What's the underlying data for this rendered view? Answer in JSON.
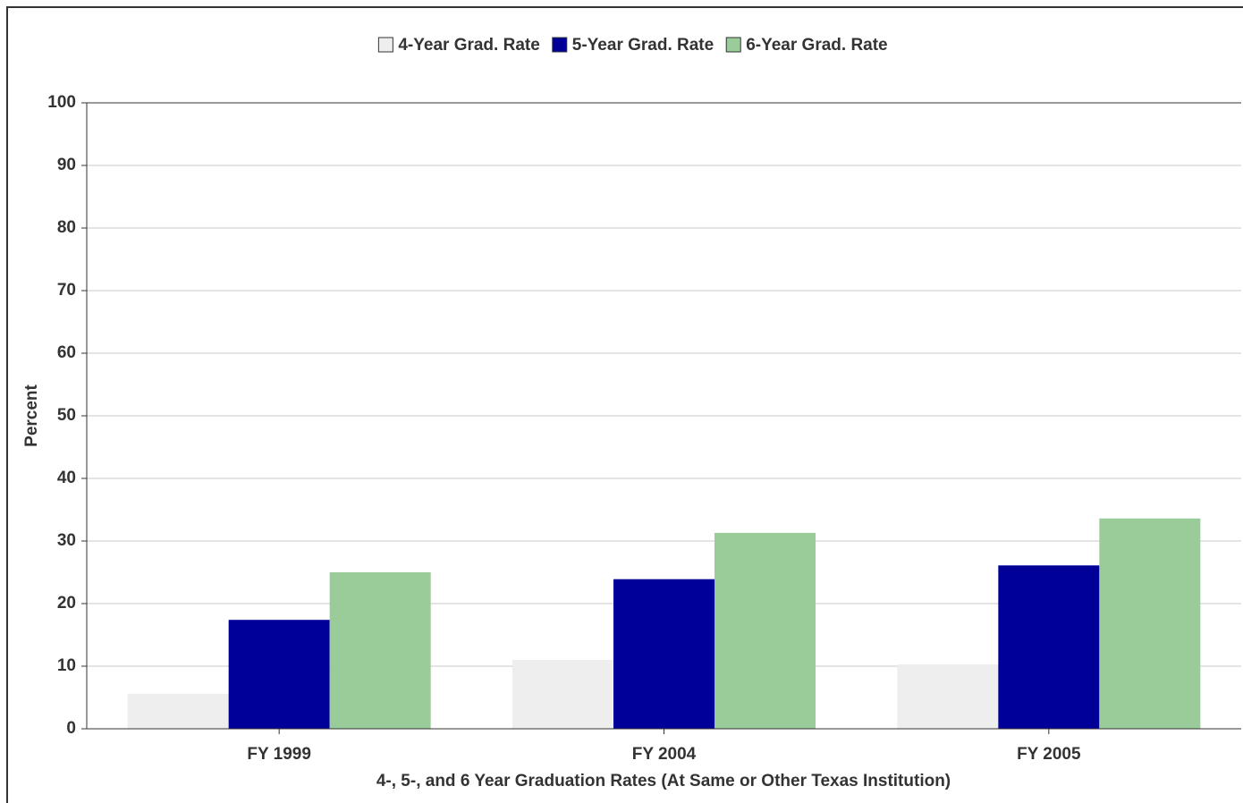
{
  "chart_data": {
    "type": "bar",
    "x_label": "4-, 5-, and 6 Year Graduation Rates (At Same or Other Texas Institution)",
    "y_label": "Percent",
    "categories": [
      "FY 1999",
      "FY 2004",
      "FY 2005"
    ],
    "series": [
      {
        "name": "4-Year Grad. Rate",
        "color": "#eeeeee",
        "values": [
          5.6,
          11.0,
          10.3
        ]
      },
      {
        "name": "5-Year Grad. Rate",
        "color": "#000099",
        "values": [
          17.4,
          23.9,
          26.1
        ]
      },
      {
        "name": "6-Year Grad. Rate",
        "color": "#99cc99",
        "values": [
          25.0,
          31.3,
          33.6
        ]
      }
    ],
    "ylim": [
      0,
      100
    ],
    "yticks": [
      0,
      10,
      20,
      30,
      40,
      50,
      60,
      70,
      80,
      90,
      100
    ],
    "grid": true,
    "legend": "top"
  }
}
